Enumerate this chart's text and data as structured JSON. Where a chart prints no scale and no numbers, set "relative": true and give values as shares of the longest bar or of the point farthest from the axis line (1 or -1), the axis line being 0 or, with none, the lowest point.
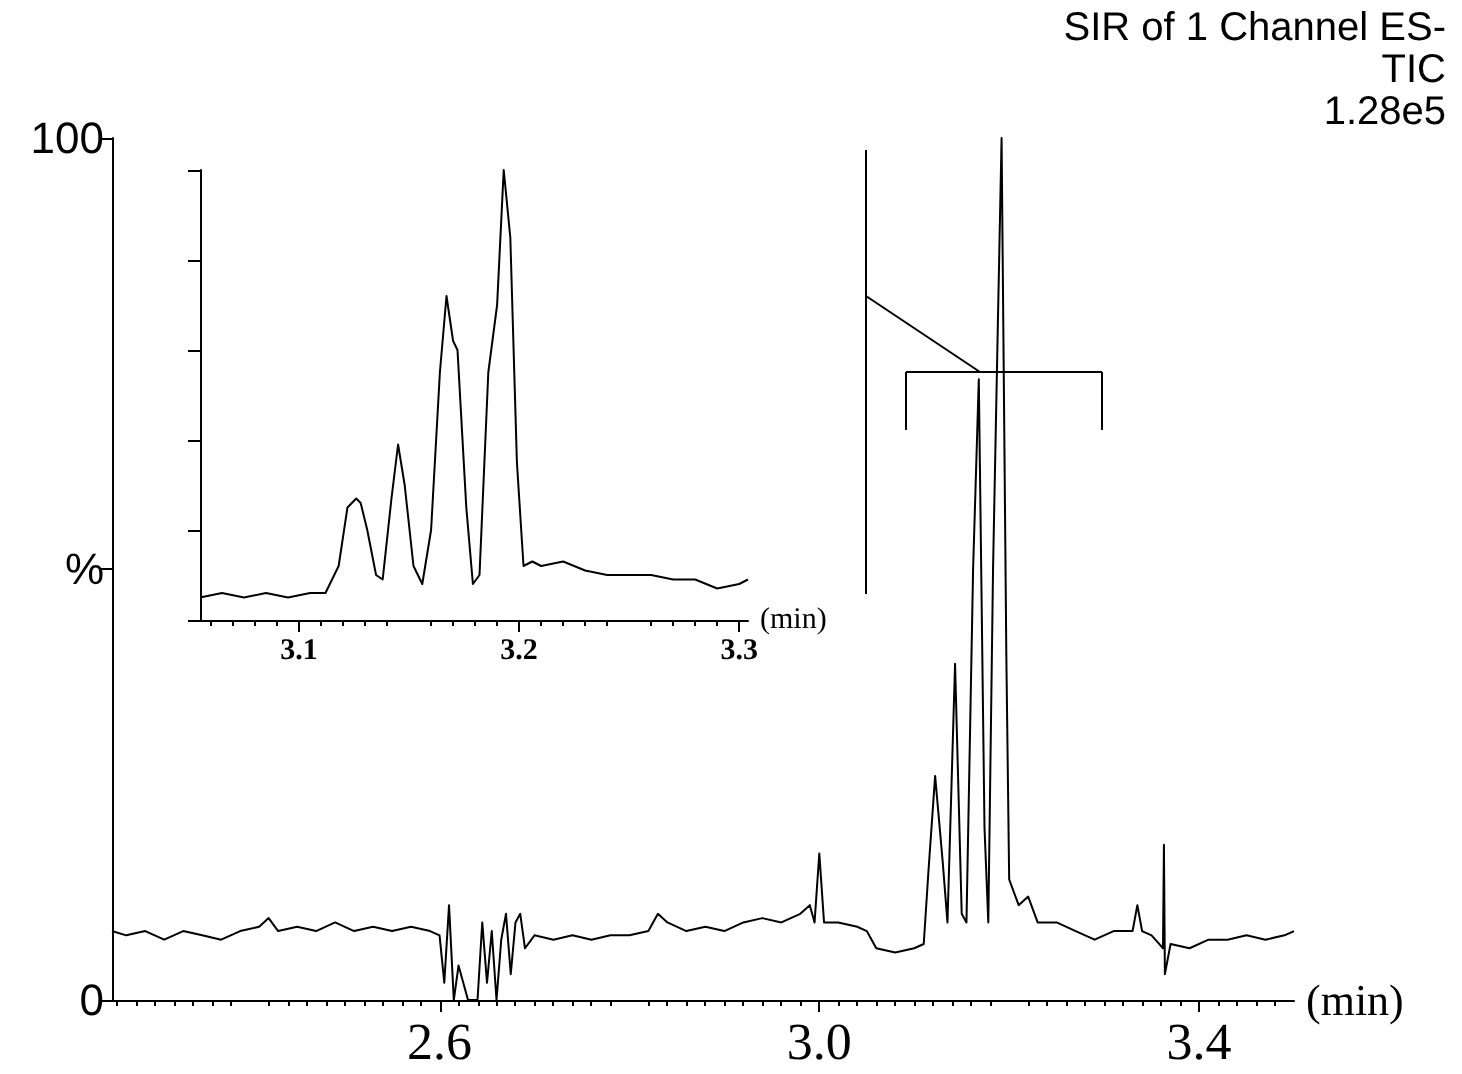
{
  "chart_data": [
    {
      "type": "line",
      "title": "SIR of 1 Channel ES-",
      "annotations": [
        "TIC",
        "1.28e5"
      ],
      "xlabel": "(min)",
      "x": [
        2.255,
        2.27,
        2.29,
        2.31,
        2.33,
        2.35,
        2.37,
        2.39,
        2.41,
        2.42,
        2.43,
        2.45,
        2.47,
        2.49,
        2.51,
        2.53,
        2.55,
        2.57,
        2.59,
        2.6,
        2.605,
        2.61,
        2.615,
        2.62,
        2.63,
        2.64,
        2.645,
        2.65,
        2.655,
        2.66,
        2.665,
        2.67,
        2.675,
        2.68,
        2.685,
        2.69,
        2.7,
        2.72,
        2.74,
        2.76,
        2.78,
        2.8,
        2.82,
        2.83,
        2.84,
        2.86,
        2.88,
        2.9,
        2.92,
        2.94,
        2.96,
        2.98,
        2.99,
        2.995,
        3.0,
        3.005,
        3.02,
        3.04,
        3.05,
        3.06,
        3.08,
        3.1,
        3.11,
        3.115,
        3.122,
        3.13,
        3.135,
        3.143,
        3.15,
        3.155,
        3.162,
        3.168,
        3.174,
        3.178,
        3.183,
        3.188,
        3.192,
        3.197,
        3.2,
        3.21,
        3.22,
        3.23,
        3.25,
        3.27,
        3.29,
        3.31,
        3.33,
        3.335,
        3.34,
        3.35,
        3.362,
        3.363,
        3.364,
        3.37,
        3.39,
        3.41,
        3.43,
        3.45,
        3.47,
        3.49,
        3.5
      ],
      "series": [
        {
          "color": "#000000",
          "values": [
            8,
            7.5,
            8,
            7,
            8,
            7.5,
            7,
            8,
            8.5,
            9.5,
            8,
            8.5,
            8,
            9,
            8,
            8.5,
            8,
            8.5,
            8,
            7.5,
            2,
            11,
            0,
            4,
            0,
            0,
            9,
            2,
            8,
            0,
            7,
            10,
            3,
            9,
            10,
            6,
            7.5,
            7,
            7.5,
            7,
            7.5,
            7.5,
            8,
            10,
            9,
            8,
            8.5,
            8,
            9,
            9.5,
            9,
            10,
            11,
            9,
            17,
            9,
            9,
            8.5,
            8,
            6,
            5.5,
            6,
            6.5,
            15,
            26,
            16,
            9,
            39,
            10,
            9,
            50,
            72,
            20,
            9,
            50,
            78,
            100,
            40,
            14,
            11,
            12,
            9,
            9,
            8,
            7,
            8,
            8,
            11,
            8,
            7.5,
            6,
            18,
            3,
            6.5,
            6,
            7,
            7,
            7.5,
            7,
            7.5,
            8
          ]
        }
      ],
      "xlim": [
        2.255,
        3.5
      ],
      "xticks": [
        2.6,
        {
          "value": 3,
          "label": "3.0"
        },
        3.4
      ],
      "ylim": [
        0,
        100
      ],
      "yticks": [
        0,
        {
          "value": 50,
          "label": "%"
        },
        100
      ],
      "marker": "none"
    },
    {
      "type": "line",
      "xlabel": "(min)",
      "relative": true,
      "x": [
        3.055,
        3.065,
        3.075,
        3.085,
        3.095,
        3.105,
        3.112,
        3.118,
        3.122,
        3.126,
        3.128,
        3.131,
        3.135,
        3.138,
        3.142,
        3.145,
        3.148,
        3.152,
        3.156,
        3.16,
        3.164,
        3.167,
        3.17,
        3.172,
        3.176,
        3.179,
        3.182,
        3.186,
        3.19,
        3.193,
        3.196,
        3.199,
        3.202,
        3.206,
        3.21,
        3.22,
        3.23,
        3.24,
        3.25,
        3.26,
        3.27,
        3.28,
        3.29,
        3.3,
        3.304
      ],
      "series": [
        {
          "color": "#000000",
          "values": [
            0.05,
            0.06,
            0.05,
            0.06,
            0.05,
            0.06,
            0.06,
            0.12,
            0.25,
            0.27,
            0.26,
            0.2,
            0.1,
            0.09,
            0.27,
            0.39,
            0.3,
            0.12,
            0.08,
            0.2,
            0.55,
            0.72,
            0.62,
            0.6,
            0.25,
            0.08,
            0.1,
            0.55,
            0.7,
            1,
            0.85,
            0.35,
            0.12,
            0.13,
            0.12,
            0.13,
            0.11,
            0.1,
            0.1,
            0.1,
            0.09,
            0.09,
            0.07,
            0.08,
            0.09
          ]
        }
      ],
      "xlim": [
        3.055,
        3.304
      ],
      "xticks": [
        3.1,
        3.2,
        3.3
      ],
      "marker": "none"
    }
  ]
}
